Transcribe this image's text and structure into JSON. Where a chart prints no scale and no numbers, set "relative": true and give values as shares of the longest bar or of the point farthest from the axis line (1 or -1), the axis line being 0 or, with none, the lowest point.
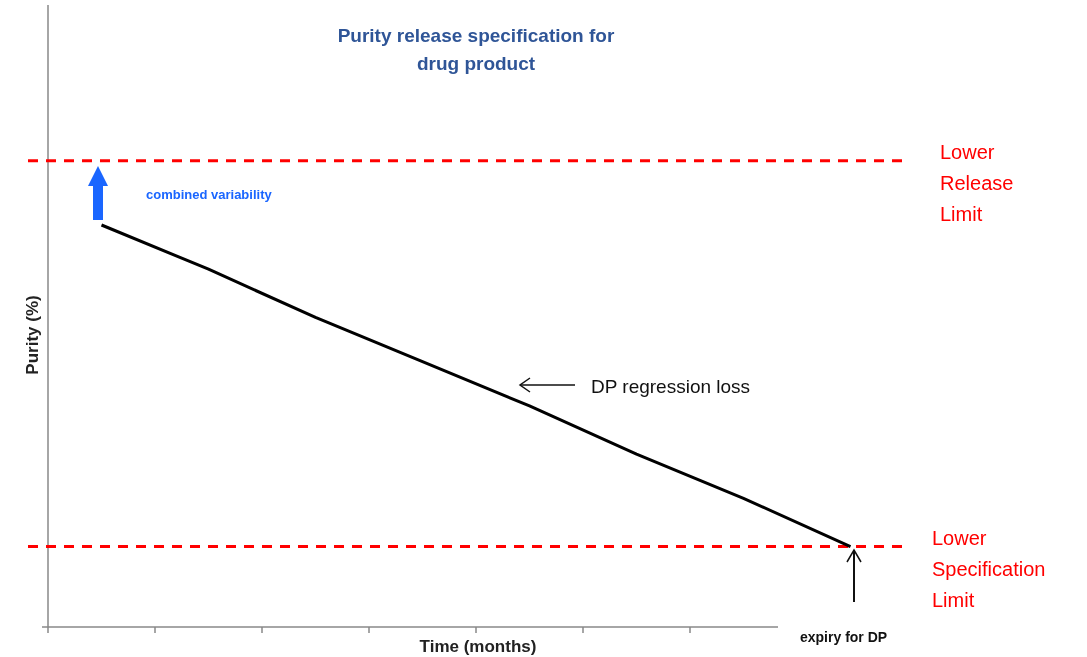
{
  "chart_data": {
    "type": "line",
    "title": "Purity release specification for drug product",
    "xlabel": "Time (months)",
    "ylabel": "Purity (%)",
    "relative": true,
    "categories": [
      null,
      null,
      null,
      null,
      null,
      null,
      null,
      null
    ],
    "series": [
      {
        "color": "#000000",
        "values": [
          1,
          0.89,
          0.77,
          0.66,
          0.55,
          0.43,
          0.32,
          0.2
        ]
      }
    ],
    "ref_lines": [
      {
        "axis": "y",
        "value": 1.16,
        "label": "Lower Release Limit",
        "color": "#ff0000",
        "line_style": "dashed"
      },
      {
        "axis": "y",
        "value": 0.2,
        "label": "Lower Specification Limit",
        "color": "#ff0000",
        "line_style": "dashed"
      }
    ],
    "annotations": [
      "combined variability",
      "DP regression loss",
      "expiry for DP"
    ],
    "marker": "none",
    "line_style": "solid"
  }
}
